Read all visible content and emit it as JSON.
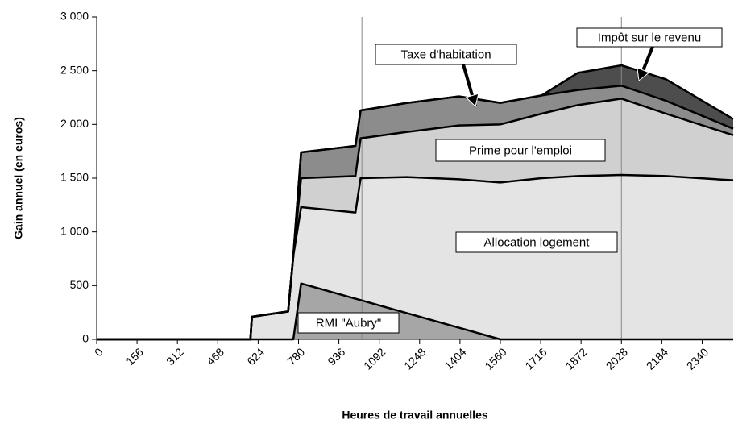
{
  "chart_data": {
    "type": "stacked_area",
    "y_axis_label": "Gain annuel (en euros)",
    "x_axis_label": "Heures de travail annuelles",
    "x": [
      0,
      594,
      600,
      740,
      760,
      790,
      1000,
      1020,
      1200,
      1400,
      1560,
      1720,
      1860,
      2028,
      2200,
      2460
    ],
    "series": [
      {
        "name": "RMI \"Aubry\"",
        "color": "#a6a6a6",
        "values": [
          0,
          0,
          0,
          0,
          0,
          520,
          378,
          365,
          243,
          108,
          0,
          0,
          0,
          0,
          0,
          0
        ]
      },
      {
        "name": "Allocation logement",
        "color": "#e4e4e4",
        "values": [
          0,
          0,
          210,
          260,
          780,
          710,
          802,
          1135,
          1267,
          1382,
          1460,
          1500,
          1520,
          1530,
          1520,
          1480
        ]
      },
      {
        "name": "Prime pour l'emploi",
        "color": "#d0d0d0",
        "values": [
          0,
          0,
          0,
          0,
          0,
          270,
          340,
          370,
          420,
          500,
          540,
          600,
          660,
          710,
          580,
          420
        ]
      },
      {
        "name": "Taxe d'habitation",
        "color": "#8c8c8c",
        "values": [
          0,
          0,
          0,
          0,
          0,
          240,
          280,
          260,
          270,
          270,
          200,
          170,
          140,
          120,
          120,
          60
        ]
      },
      {
        "name": "Impôt sur le revenu",
        "color": "#4d4d4d",
        "values": [
          0,
          0,
          0,
          0,
          0,
          0,
          0,
          0,
          0,
          0,
          0,
          0,
          160,
          190,
          200,
          90
        ]
      }
    ],
    "xlim": [
      0,
      2460
    ],
    "ylim": [
      0,
      3000
    ],
    "xticks": [
      0,
      156,
      312,
      468,
      624,
      780,
      936,
      1092,
      1248,
      1404,
      1560,
      1716,
      1872,
      2028,
      2184,
      2340
    ],
    "yticks": [
      0,
      500,
      {
        "value": 1000,
        "label": "1 000"
      },
      {
        "value": 1500,
        "label": "1 500"
      },
      {
        "value": 2000,
        "label": "2 000"
      },
      {
        "value": 2500,
        "label": "2 500"
      },
      {
        "value": 3000,
        "label": "3 000"
      }
    ],
    "vlines": [
      1025,
      2028
    ]
  }
}
